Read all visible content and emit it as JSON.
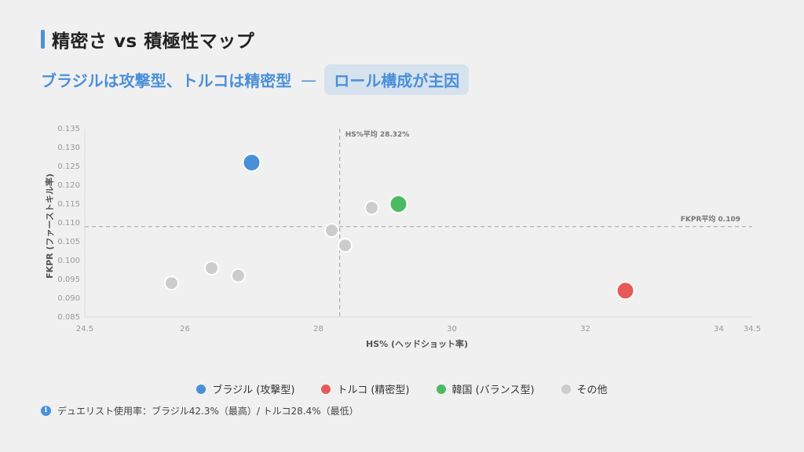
{
  "header": {
    "title": "精密さ vs 積極性マップ",
    "subtitle_main": "ブラジルは攻撃型、トルコは精密型",
    "subtitle_dash": "—",
    "subtitle_pill": "ロール構成が主因"
  },
  "chart_data": {
    "type": "scatter",
    "xlabel": "HS% (ヘッドショット率)",
    "ylabel": "FKPR (ファーストキル率)",
    "xlim": [
      24.5,
      34.5
    ],
    "ylim": [
      0.085,
      0.135
    ],
    "x_ticks": [
      "24.5",
      "26",
      "28",
      "30",
      "32",
      "34",
      "34.5"
    ],
    "x_tick_values": [
      24.5,
      26,
      28,
      30,
      32,
      34,
      34.5
    ],
    "y_ticks": [
      "0.135",
      "0.130",
      "0.125",
      "0.120",
      "0.115",
      "0.110",
      "0.105",
      "0.100",
      "0.095",
      "0.090",
      "0.085"
    ],
    "y_tick_values": [
      0.135,
      0.13,
      0.125,
      0.12,
      0.115,
      0.11,
      0.105,
      0.1,
      0.095,
      0.09,
      0.085
    ],
    "reference_lines": {
      "x_mean": 28.32,
      "x_mean_label": "HS%平均 28.32%",
      "y_mean": 0.109,
      "y_mean_label": "FKPR平均 0.109"
    },
    "colors": {
      "brazil": "#4a90d9",
      "turkey": "#e85a5a",
      "korea": "#4cba62",
      "other": "#cccccc"
    },
    "series": [
      {
        "name": "ブラジル (攻撃型)",
        "color_key": "brazil",
        "points": [
          [
            27.0,
            0.126
          ]
        ]
      },
      {
        "name": "トルコ (精密型)",
        "color_key": "turkey",
        "points": [
          [
            32.6,
            0.092
          ]
        ]
      },
      {
        "name": "韓国 (バランス型)",
        "color_key": "korea",
        "points": [
          [
            29.2,
            0.115
          ]
        ]
      },
      {
        "name": "その他",
        "color_key": "other",
        "points": [
          [
            28.8,
            0.114
          ],
          [
            28.2,
            0.108
          ],
          [
            28.4,
            0.104
          ],
          [
            26.4,
            0.098
          ],
          [
            26.8,
            0.096
          ],
          [
            25.8,
            0.094
          ]
        ]
      }
    ]
  },
  "footer": {
    "info_icon": "i",
    "note": "デュエリスト使用率：ブラジル42.3%（最高）/ トルコ28.4%（最低）"
  }
}
